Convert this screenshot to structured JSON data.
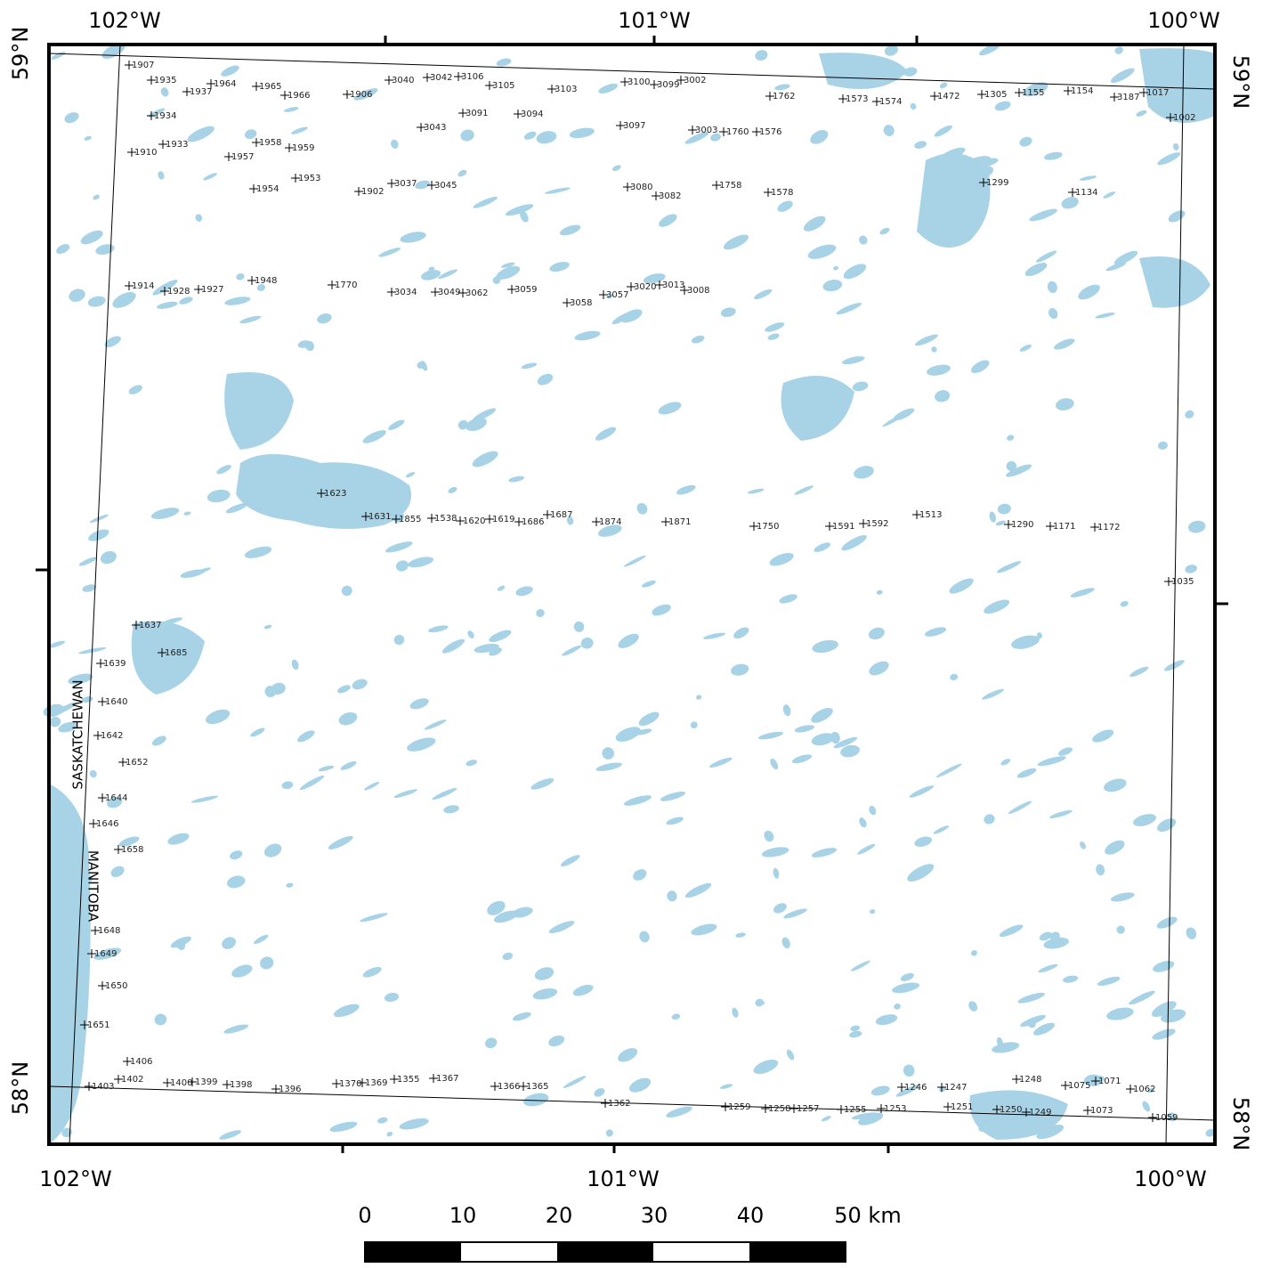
{
  "map": {
    "lon_labels_top": [
      "102°W",
      "101°W",
      "100°W"
    ],
    "lon_labels_bottom": [
      "102°W",
      "101°W",
      "100°W"
    ],
    "lat_labels_left": [
      "59°N",
      "58°N"
    ],
    "lat_labels_right": [
      "59°N",
      "58°N"
    ],
    "regions": [
      "SASKATCHEWAN",
      "MANITOBA"
    ],
    "scale_labels": [
      "0",
      "10",
      "20",
      "30",
      "40",
      "50 km"
    ],
    "stations": [
      "1907",
      "1935",
      "1937",
      "1964",
      "1965",
      "1966",
      "1906",
      "3040",
      "3042",
      "3106",
      "3105",
      "3103",
      "3100",
      "3099",
      "3002",
      "1762",
      "1573",
      "1574",
      "1472",
      "1305",
      "1155",
      "1154",
      "3187",
      "1017",
      "1934",
      "1933",
      "1910",
      "1958",
      "1959",
      "3043",
      "3091",
      "3094",
      "3097",
      "3003",
      "1760",
      "1576",
      "1002",
      "1957",
      "1954",
      "1953",
      "1902",
      "3037",
      "3045",
      "3080",
      "3082",
      "1758",
      "1578",
      "1299",
      "1134",
      "1914",
      "1928",
      "1927",
      "1948",
      "1770",
      "3034",
      "3049",
      "3062",
      "3059",
      "3058",
      "3057",
      "3020",
      "3013",
      "3008",
      "1623",
      "1631",
      "1855",
      "1538",
      "1620",
      "1619",
      "1686",
      "1687",
      "1874",
      "1871",
      "1750",
      "1591",
      "1592",
      "1513",
      "1290",
      "1171",
      "1172",
      "1035",
      "1637",
      "1685",
      "1639",
      "1640",
      "1642",
      "1652",
      "1644",
      "1646",
      "1658",
      "1648",
      "1649",
      "1650",
      "1651",
      "1403",
      "1402",
      "1406",
      "1400",
      "1399",
      "1398",
      "1396",
      "1370",
      "1369",
      "1355",
      "1367",
      "1366",
      "1365",
      "1362",
      "1259",
      "1258",
      "1257",
      "1255",
      "1253",
      "1251",
      "1250",
      "1249",
      "1073",
      "1059",
      "1062",
      "1075",
      "1071",
      "1248",
      "1247",
      "1246"
    ]
  }
}
